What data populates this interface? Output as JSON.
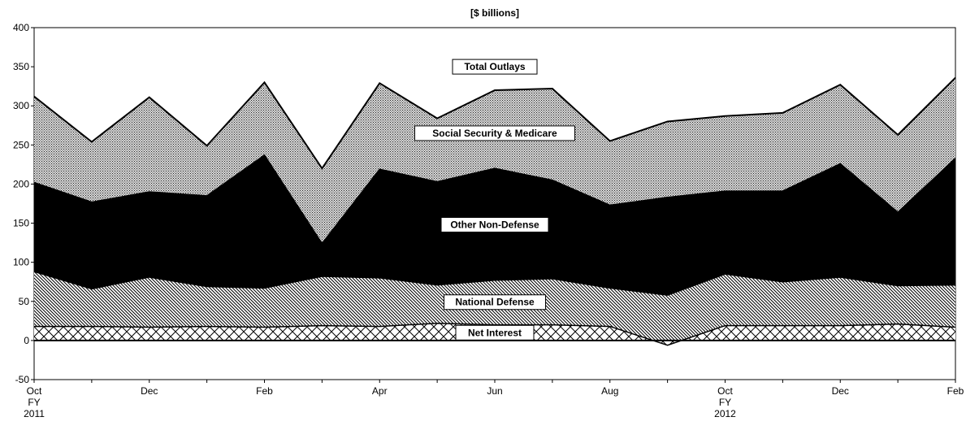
{
  "chart_data": {
    "type": "area",
    "title": "[$ billions]",
    "ylim": [
      -50,
      400
    ],
    "yticks": [
      -50,
      0,
      50,
      100,
      150,
      200,
      250,
      300,
      350,
      400
    ],
    "x_labels": [
      {
        "index": 0,
        "lines": [
          "Oct",
          "FY",
          "2011"
        ]
      },
      {
        "index": 2,
        "lines": [
          "Dec"
        ]
      },
      {
        "index": 4,
        "lines": [
          "Feb"
        ]
      },
      {
        "index": 6,
        "lines": [
          "Apr"
        ]
      },
      {
        "index": 8,
        "lines": [
          "Jun"
        ]
      },
      {
        "index": 10,
        "lines": [
          "Aug"
        ]
      },
      {
        "index": 12,
        "lines": [
          "Oct",
          "FY",
          "2012"
        ]
      },
      {
        "index": 14,
        "lines": [
          "Dec"
        ]
      },
      {
        "index": 16,
        "lines": [
          "Feb"
        ]
      }
    ],
    "layers": [
      {
        "name": "Net Interest",
        "values": [
          18,
          18,
          17,
          18,
          17,
          19,
          18,
          22,
          20,
          20,
          18,
          -6,
          19,
          19,
          19,
          21,
          17
        ]
      },
      {
        "name": "National Defense",
        "values": [
          88,
          66,
          81,
          69,
          67,
          82,
          80,
          71,
          77,
          79,
          67,
          58,
          85,
          75,
          81,
          70,
          71
        ]
      },
      {
        "name": "Other Non-Defense",
        "values": [
          202,
          177,
          190,
          185,
          237,
          124,
          219,
          203,
          220,
          205,
          173,
          183,
          191,
          191,
          226,
          164,
          233
        ]
      },
      {
        "name": "Social Security & Medicare",
        "values": [
          312,
          254,
          311,
          249,
          330,
          220,
          329,
          284,
          320,
          322,
          255,
          280,
          287,
          291,
          327,
          263,
          336
        ]
      }
    ],
    "annotation": "Total Outlays",
    "grid": false,
    "legend": "none"
  }
}
